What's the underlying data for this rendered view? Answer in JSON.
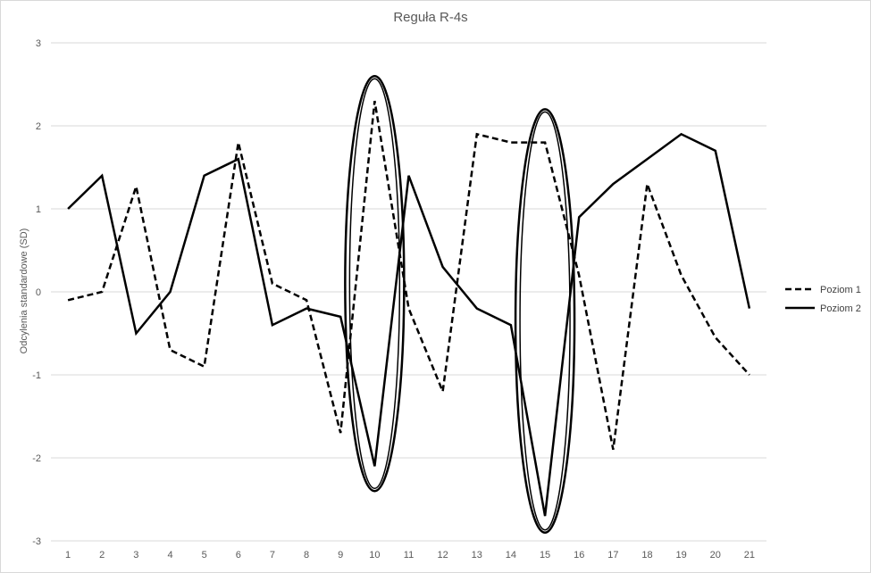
{
  "chart_data": {
    "type": "line",
    "title": "Reguła R-4s",
    "xlabel": "",
    "ylabel": "Odcylenia standardowe (SD)",
    "x": [
      1,
      2,
      3,
      4,
      5,
      6,
      7,
      8,
      9,
      10,
      11,
      12,
      13,
      14,
      15,
      16,
      17,
      18,
      19,
      20,
      21
    ],
    "ylim": [
      -3,
      3
    ],
    "yticks": [
      -3,
      -2,
      -1,
      0,
      1,
      2,
      3
    ],
    "grid": true,
    "legend_position": "right",
    "series": [
      {
        "name": "Poziom 1",
        "style": "dashed",
        "color": "#000000",
        "values": [
          -0.1,
          0.0,
          1.27,
          -0.7,
          -0.9,
          1.8,
          0.1,
          -0.1,
          -1.7,
          2.3,
          -0.2,
          -1.2,
          1.9,
          1.8,
          1.8,
          0.2,
          -1.9,
          1.3,
          0.2,
          -0.55,
          -1.0
        ]
      },
      {
        "name": "Poziom 2",
        "style": "solid",
        "color": "#000000",
        "values": [
          1.0,
          1.4,
          -0.5,
          0.0,
          1.4,
          1.6,
          -0.4,
          -0.2,
          -0.3,
          -2.1,
          1.4,
          0.3,
          -0.2,
          -0.4,
          -2.7,
          0.9,
          1.3,
          1.6,
          1.9,
          1.7,
          -0.2
        ]
      }
    ],
    "highlights": [
      {
        "x": 10,
        "y_range": [
          -2.4,
          2.6
        ]
      },
      {
        "x": 15,
        "y_range": [
          -2.9,
          2.2
        ]
      }
    ]
  },
  "colors": {
    "grid": "#d9d9d9",
    "text": "#595959",
    "series": "#000000"
  }
}
